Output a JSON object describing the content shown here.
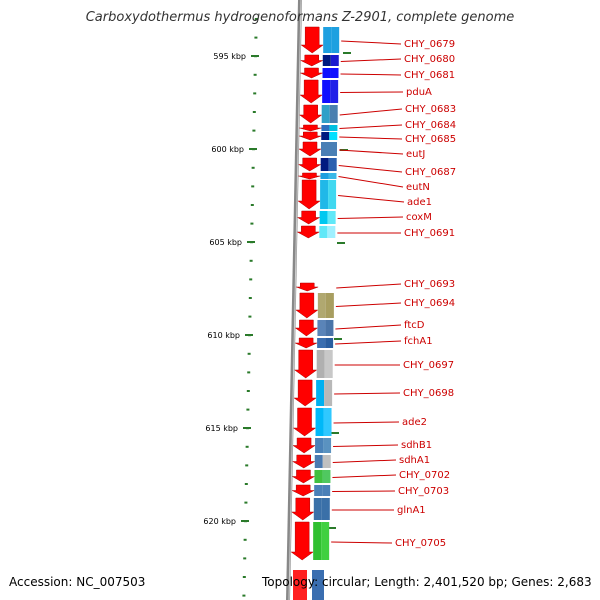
{
  "title": "Carboxydothermus hydrogenoformans Z-2901, complete genome",
  "footer": {
    "accession_label": "Accession:",
    "accession": "NC_007503",
    "topology_text": "Topology: circular; Length: 2,401,520 bp; Genes: 2,683"
  },
  "colors": {
    "ruler_tick": "#2a7a2a",
    "backbone": "#888888",
    "gene_arrow": "#ff0000",
    "label": "#cc0000",
    "leader": "#cc0000"
  },
  "scale": {
    "labels": [
      "595 kbp",
      "600 kbp",
      "605 kbp",
      "610 kbp",
      "615 kbp",
      "620 kbp"
    ]
  },
  "genes": [
    {
      "label": "CHY_0679",
      "cog": [
        "#1ea0e0",
        "#1ea0e0"
      ]
    },
    {
      "label": "CHY_0680",
      "cog": [
        "#001a80",
        "#1a1ad0"
      ]
    },
    {
      "label": "CHY_0681",
      "cog": [
        "#1010ff",
        "#1010ff"
      ]
    },
    {
      "label": "pduA",
      "cog": [
        "#1010ff",
        "#2020e8"
      ]
    },
    {
      "label": "CHY_0683",
      "cog": [
        "#2fa0c8",
        "#4a80b0"
      ]
    },
    {
      "label": "CHY_0684",
      "cog": [
        "#2b6fbf",
        "#00c0e0"
      ]
    },
    {
      "label": "CHY_0685",
      "cog": [
        "#001a80",
        "#00e0ff"
      ]
    },
    {
      "label": "eutJ",
      "cog": [
        "#4a7fb5",
        "#4a7fb5"
      ]
    },
    {
      "label": "CHY_0687",
      "cog": [
        "#001a80",
        "#2a60b0"
      ]
    },
    {
      "label": "eutN",
      "cog": [
        "#1ea0e0",
        "#3ab8e8"
      ]
    },
    {
      "label": "ade1",
      "cog": [
        "#20b8e8",
        "#40d8f0"
      ]
    },
    {
      "label": "coxM",
      "cog": [
        "#00c8f0",
        "#60e8f8"
      ]
    },
    {
      "label": "CHY_0691",
      "cog": [
        "#60e8f8",
        "#a0f0ff"
      ]
    },
    {
      "label": "CHY_0693",
      "cog": [
        "#ffffff",
        "#ffffff"
      ]
    },
    {
      "label": "CHY_0694",
      "cog": [
        "#b0a870",
        "#a89e60"
      ]
    },
    {
      "label": "ftcD",
      "cog": [
        "#5a84b8",
        "#4a74a8"
      ]
    },
    {
      "label": "fchA1",
      "cog": [
        "#3a6eb0",
        "#2a5ea0"
      ]
    },
    {
      "label": "CHY_0697",
      "cog": [
        "#b0b0b0",
        "#c8c8c8"
      ]
    },
    {
      "label": "CHY_0698",
      "cog": [
        "#00b0f0",
        "#b8b8b8"
      ]
    },
    {
      "label": "ade2",
      "cog": [
        "#00b8f8",
        "#30c8ff"
      ]
    },
    {
      "label": "sdhB1",
      "cog": [
        "#4a82b8",
        "#5a92c0"
      ]
    },
    {
      "label": "sdhA1",
      "cog": [
        "#4a7ab0",
        "#c0c0c0"
      ]
    },
    {
      "label": "CHY_0702",
      "cog": [
        "#40c040",
        "#50c860"
      ]
    },
    {
      "label": "CHY_0703",
      "cog": [
        "#4a80b8",
        "#4a80b8"
      ]
    },
    {
      "label": "glnA1",
      "cog": [
        "#3a70a8",
        "#3a70a8"
      ]
    },
    {
      "label": "CHY_0705",
      "cog": [
        "#30c030",
        "#40d040"
      ]
    }
  ]
}
